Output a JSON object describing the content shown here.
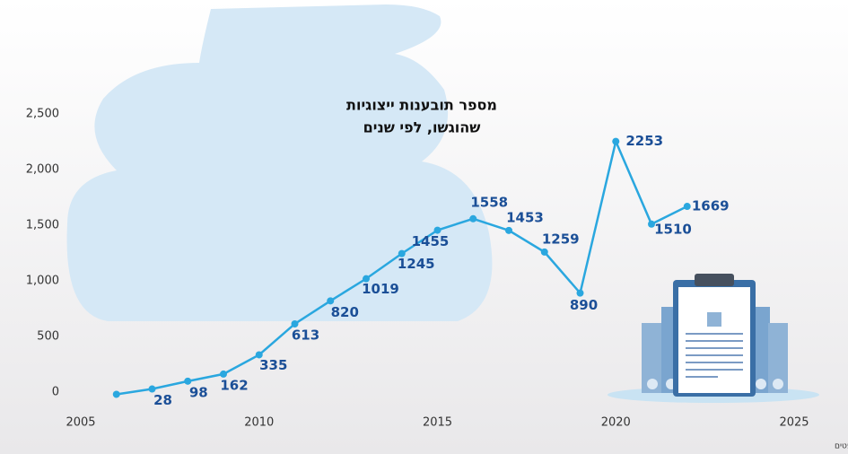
{
  "chart_data": {
    "type": "line",
    "title": [
      "מספר תובענות ייצוגיות",
      "שהוגשו, לפי שנים"
    ],
    "source": "מקור: משרד המשפטים",
    "x": [
      2006,
      2007,
      2008,
      2009,
      2010,
      2011,
      2012,
      2013,
      2014,
      2015,
      2016,
      2017,
      2018,
      2019,
      2020,
      2021,
      2022
    ],
    "series": [
      {
        "color": "#2aa7df",
        "values": [
          -20,
          28,
          98,
          162,
          335,
          613,
          820,
          1019,
          1245,
          1455,
          1558,
          1453,
          1259,
          890,
          2253,
          1510,
          1669
        ],
        "value_labels": [
          null,
          "28",
          "98",
          "162",
          "335",
          "613",
          "820",
          "1019",
          "1245",
          "1455",
          "1558",
          "1453",
          "1259",
          "890",
          "2253",
          "1510",
          "1669"
        ]
      }
    ],
    "xlim": [
      2005,
      2025
    ],
    "xticks": [
      2005,
      2010,
      2015,
      2020,
      2025
    ],
    "ylim": [
      0,
      2500
    ],
    "yticks": [
      0,
      500,
      {
        "value": 1000,
        "label": "1,000"
      },
      {
        "value": 1500,
        "label": "1,500"
      },
      {
        "value": 2000,
        "label": "2,000"
      },
      {
        "value": 2500,
        "label": "2,500"
      }
    ],
    "label_color": "#1b4f97"
  }
}
